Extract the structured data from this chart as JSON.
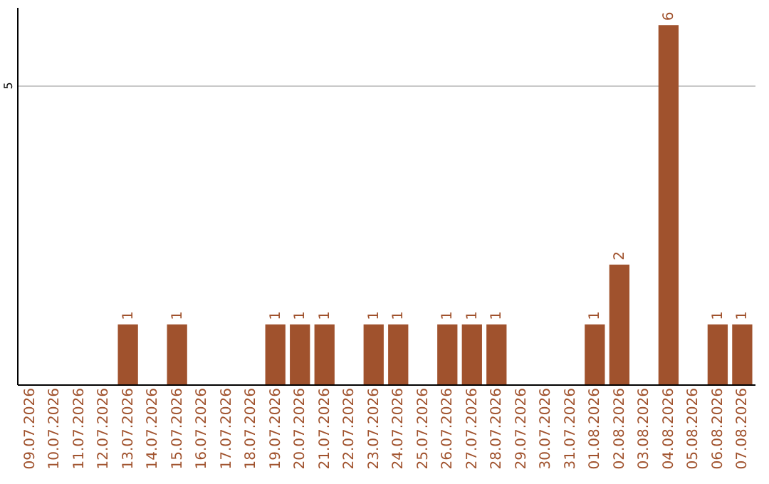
{
  "chart_data": {
    "type": "bar",
    "categories": [
      "09.07.2026",
      "10.07.2026",
      "11.07.2026",
      "12.07.2026",
      "13.07.2026",
      "14.07.2026",
      "15.07.2026",
      "16.07.2026",
      "17.07.2026",
      "18.07.2026",
      "19.07.2026",
      "20.07.2026",
      "21.07.2026",
      "22.07.2026",
      "23.07.2026",
      "24.07.2026",
      "25.07.2026",
      "26.07.2026",
      "27.07.2026",
      "28.07.2026",
      "29.07.2026",
      "30.07.2026",
      "31.07.2026",
      "01.08.2026",
      "02.08.2026",
      "03.08.2026",
      "04.08.2026",
      "05.08.2026",
      "06.08.2026",
      "07.08.2026"
    ],
    "values": [
      0,
      0,
      0,
      0,
      1,
      0,
      1,
      0,
      0,
      0,
      1,
      1,
      1,
      0,
      1,
      1,
      0,
      1,
      1,
      1,
      0,
      0,
      0,
      1,
      2,
      0,
      6,
      0,
      1,
      1
    ],
    "value_labels": [
      null,
      null,
      null,
      null,
      "1",
      null,
      "1",
      null,
      null,
      null,
      "1",
      "1",
      "1",
      null,
      "1",
      "1",
      null,
      "1",
      "1",
      "1",
      null,
      null,
      null,
      "1",
      "2",
      null,
      "6",
      null,
      "1",
      "1"
    ],
    "color": "#a0522d",
    "ylim": [
      0,
      6.3
    ],
    "yticks": [
      5
    ],
    "grid": "y"
  }
}
